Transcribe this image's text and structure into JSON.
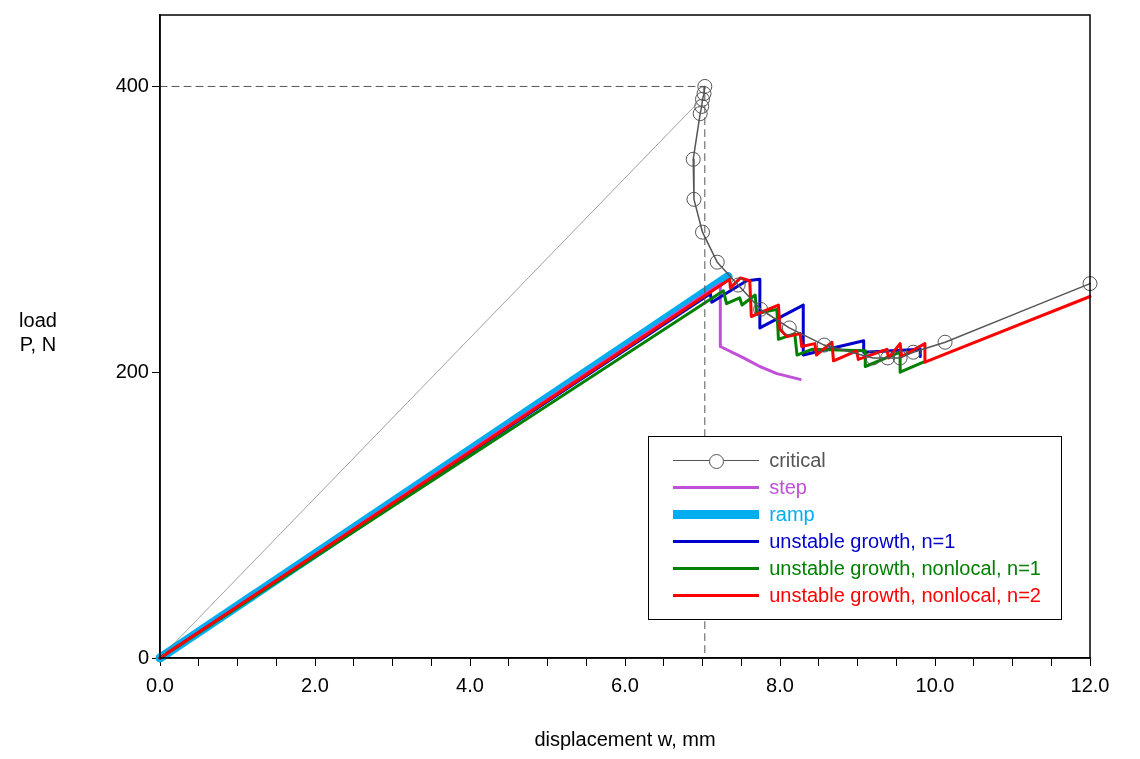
{
  "chart_data": {
    "type": "line",
    "xlabel": "displacement w, mm",
    "ylabel": "load P, N",
    "xlim": [
      0,
      12
    ],
    "ylim": [
      0,
      450
    ],
    "xticks": [
      {
        "value": 0,
        "label": "0.0"
      },
      {
        "value": 0.5,
        "label": null
      },
      {
        "value": 1,
        "label": null
      },
      {
        "value": 1.5,
        "label": null
      },
      {
        "value": 2,
        "label": "2.0"
      },
      {
        "value": 2.5,
        "label": null
      },
      {
        "value": 3,
        "label": null
      },
      {
        "value": 3.5,
        "label": null
      },
      {
        "value": 4,
        "label": "4.0"
      },
      {
        "value": 4.5,
        "label": null
      },
      {
        "value": 5,
        "label": null
      },
      {
        "value": 5.5,
        "label": null
      },
      {
        "value": 6,
        "label": "6.0"
      },
      {
        "value": 6.5,
        "label": null
      },
      {
        "value": 7,
        "label": null
      },
      {
        "value": 7.5,
        "label": null
      },
      {
        "value": 8,
        "label": "8.0"
      },
      {
        "value": 8.5,
        "label": null
      },
      {
        "value": 9,
        "label": null
      },
      {
        "value": 9.5,
        "label": null
      },
      {
        "value": 10,
        "label": "10.0"
      },
      {
        "value": 10.5,
        "label": null
      },
      {
        "value": 11,
        "label": null
      },
      {
        "value": 11.5,
        "label": null
      },
      {
        "value": 12,
        "label": "12.0"
      }
    ],
    "yticks": [
      0,
      200,
      400
    ],
    "grid": false,
    "legend": "bottom right",
    "line_style": "solid",
    "series": [
      {
        "color": "#555555",
        "line_style": "dashed",
        "marker": "none",
        "x": [
          0,
          7.03,
          7.03
        ],
        "values": [
          400,
          400,
          0
        ]
      },
      {
        "color": "#777777",
        "marker": "none",
        "x": [
          0,
          6.93
        ],
        "values": [
          0,
          388
        ]
      },
      {
        "name": "critical",
        "color": "#555555",
        "marker": "circle",
        "x": [
          7.03,
          7.02,
          7.0,
          6.99,
          6.97,
          6.88,
          6.89,
          7.0,
          7.19,
          7.46,
          7.75,
          8.12,
          8.57,
          9.2,
          9.39,
          9.55,
          9.72,
          10.13,
          12
        ],
        "values": [
          400,
          395,
          391,
          386,
          381,
          349,
          321,
          298,
          277,
          261,
          244,
          231,
          219,
          210,
          210,
          210,
          214,
          221,
          262
        ]
      },
      {
        "name": "step",
        "color": "#c050d8",
        "marker": "none",
        "x": [
          0,
          7.23,
          7.23,
          7.53,
          7.74,
          7.96,
          8.26
        ],
        "values": [
          0,
          262,
          218,
          210,
          204,
          199,
          195
        ]
      },
      {
        "name": "ramp",
        "color": "#00aeef",
        "marker": "none",
        "x": [
          0,
          7.33
        ],
        "values": [
          0,
          267
        ]
      },
      {
        "name": "unstable growth, n=1",
        "color": "#0000cc",
        "marker": "none",
        "x": [
          0,
          7.1,
          7.12,
          7.57,
          7.74,
          7.74,
          8.3,
          8.3,
          9.08,
          9.08,
          9.81,
          9.81
        ],
        "values": [
          0,
          255,
          249,
          264,
          265,
          231,
          247,
          212,
          222,
          214,
          216,
          211
        ]
      },
      {
        "name": "unstable growth, nonlocal, n=1",
        "color": "#008000",
        "marker": "none",
        "x": [
          0,
          7.27,
          7.31,
          7.48,
          7.51,
          7.68,
          7.7,
          7.96,
          7.98,
          8.19,
          8.22,
          8.41,
          9.1,
          9.1,
          9.55,
          9.55,
          9.85
        ],
        "values": [
          0,
          257,
          248,
          252,
          247,
          254,
          241,
          244,
          223,
          227,
          212,
          216,
          215,
          204,
          214,
          200,
          207
        ]
      },
      {
        "name": "unstable growth, nonlocal, n=2",
        "color": "#ff0000",
        "marker": "none",
        "x": [
          0,
          7.35,
          7.36,
          7.49,
          7.61,
          7.63,
          7.98,
          8.0,
          8.09,
          8.26,
          8.28,
          8.45,
          8.47,
          8.67,
          8.69,
          8.99,
          9.01,
          9.38,
          9.4,
          9.55,
          9.57,
          9.87,
          9.87,
          12
        ],
        "values": [
          0,
          265,
          259,
          266,
          264,
          239,
          247,
          230,
          225,
          227,
          218,
          220,
          212,
          221,
          208,
          215,
          209,
          216,
          210,
          220,
          211,
          220,
          207,
          253
        ]
      }
    ]
  }
}
